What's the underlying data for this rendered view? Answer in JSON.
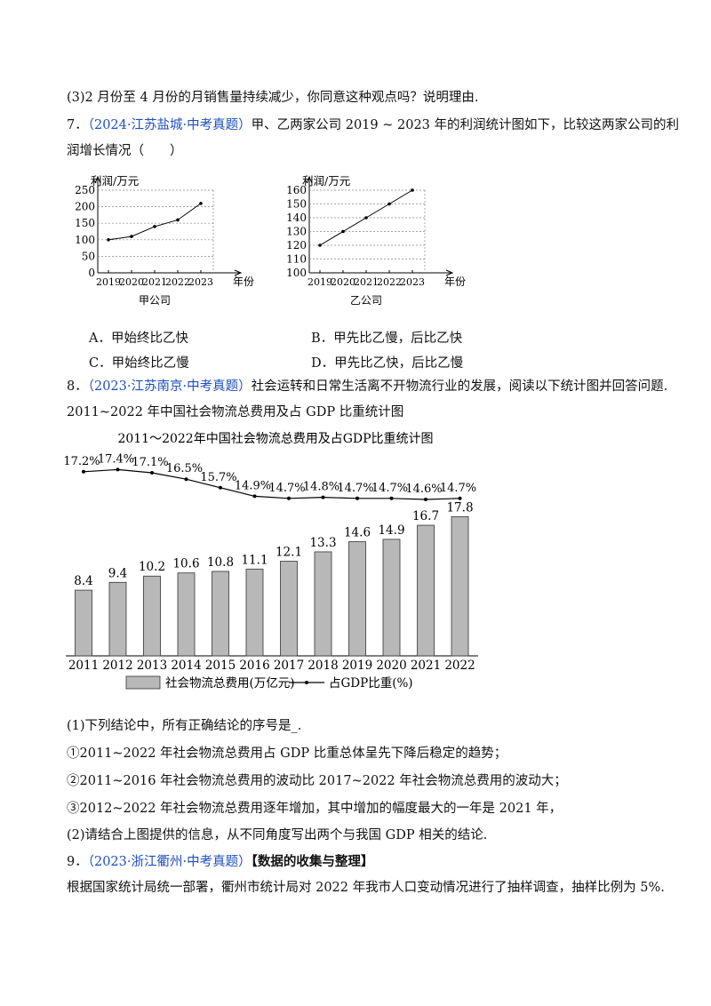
{
  "lines": {
    "q_prev3": "(3)2 月份至 4 月份的月销售量持续减少，你同意这种观点吗？说明理由.",
    "q7_num": "7．",
    "q7_tag": "（2024·江苏盐城·中考真题）",
    "q7_text": "甲、乙两家公司 2019 ~ 2023 年的利润统计图如下，比较这两家公司的利",
    "q7_text2": "润增长情况（　　）",
    "q8_num": "8．",
    "q8_tag": "（2023·江苏南京·中考真题）",
    "q8_text": "社会运转和日常生活离不开物流行业的发展，阅读以下统计图并回答问题.",
    "q8_subtitle": "2011~2022 年中国社会物流总费用及占 GDP 比重统计图",
    "q8_part1": "(1)下列结论中，所有正确结论的序号是_.",
    "q8_c1": "①2011~2022 年社会物流总费用占 GDP 比重总体呈先下降后稳定的趋势；",
    "q8_c2": "②2011~2016 年社会物流总费用的波动比 2017~2022 年社会物流总费用的波动大；",
    "q8_c3": "③2012~2022 年社会物流总费用逐年增加，其中增加的幅度最大的一年是 2021 年，",
    "q8_part2": "(2)请结合上图提供的信息，从不同角度写出两个与我国 GDP 相关的结论.",
    "q9_num": "9．",
    "q9_tag": "（2023·浙江衢州·中考真题）",
    "q9_head": "【数据的收集与整理】",
    "q9_text": "根据国家统计局统一部署，衢州市统计局对 2022 年我市人口变动情况进行了抽样调查，抽样比例为 5%."
  },
  "options": {
    "a": "A．甲始终比乙快",
    "b": "B．甲先比乙慢，后比乙快",
    "c": "C．甲始终比乙慢",
    "d": "D．甲先比乙快，后比乙慢"
  },
  "chart_data": [
    {
      "type": "line",
      "xlabel": "年份",
      "ylabel": "利润/万元",
      "caption": "甲公司",
      "x": [
        "2019",
        "2020",
        "2021",
        "2022",
        "2023"
      ],
      "values": [
        100,
        110,
        140,
        160,
        210
      ],
      "yticks": [
        0,
        50,
        100,
        150,
        200,
        250
      ],
      "ylim": [
        0,
        250
      ]
    },
    {
      "type": "line",
      "xlabel": "年份",
      "ylabel": "利润/万元",
      "caption": "乙公司",
      "x": [
        "2019",
        "2020",
        "2021",
        "2022",
        "2023"
      ],
      "values": [
        120,
        130,
        140,
        150,
        160
      ],
      "yticks": [
        100,
        110,
        120,
        130,
        140,
        150,
        160
      ],
      "ylim": [
        100,
        160
      ]
    },
    {
      "type": "bar",
      "title": "2011～2022年中国社会物流总费用及占GDP比重统计图",
      "categories": [
        "2011",
        "2012",
        "2013",
        "2014",
        "2015",
        "2016",
        "2017",
        "2018",
        "2019",
        "2020",
        "2021",
        "2022"
      ],
      "series": [
        {
          "name": "社会物流总费用(万亿元)",
          "type": "bar",
          "values": [
            8.4,
            9.4,
            10.2,
            10.6,
            10.8,
            11.1,
            12.1,
            13.3,
            14.6,
            14.9,
            16.7,
            17.8
          ]
        },
        {
          "name": "占GDP比重(%)",
          "type": "line",
          "values": [
            17.2,
            17.4,
            17.1,
            16.5,
            15.7,
            14.9,
            14.7,
            14.8,
            14.7,
            14.7,
            14.6,
            14.7
          ]
        }
      ],
      "bar_labels": [
        "8.4",
        "9.4",
        "10.2",
        "10.6",
        "10.8",
        "11.1",
        "12.1",
        "13.3",
        "14.6",
        "14.9",
        "16.7",
        "17.8"
      ],
      "line_labels": [
        "17.2%",
        "17.4%",
        "17.1%",
        "16.5%",
        "15.7%",
        "14.9%",
        "14.7%",
        "14.8%",
        "14.7%",
        "14.7%",
        "14.6%",
        "14.7%"
      ],
      "colors": {
        "bar": "#b8b8b8",
        "line": "#000000"
      }
    }
  ]
}
